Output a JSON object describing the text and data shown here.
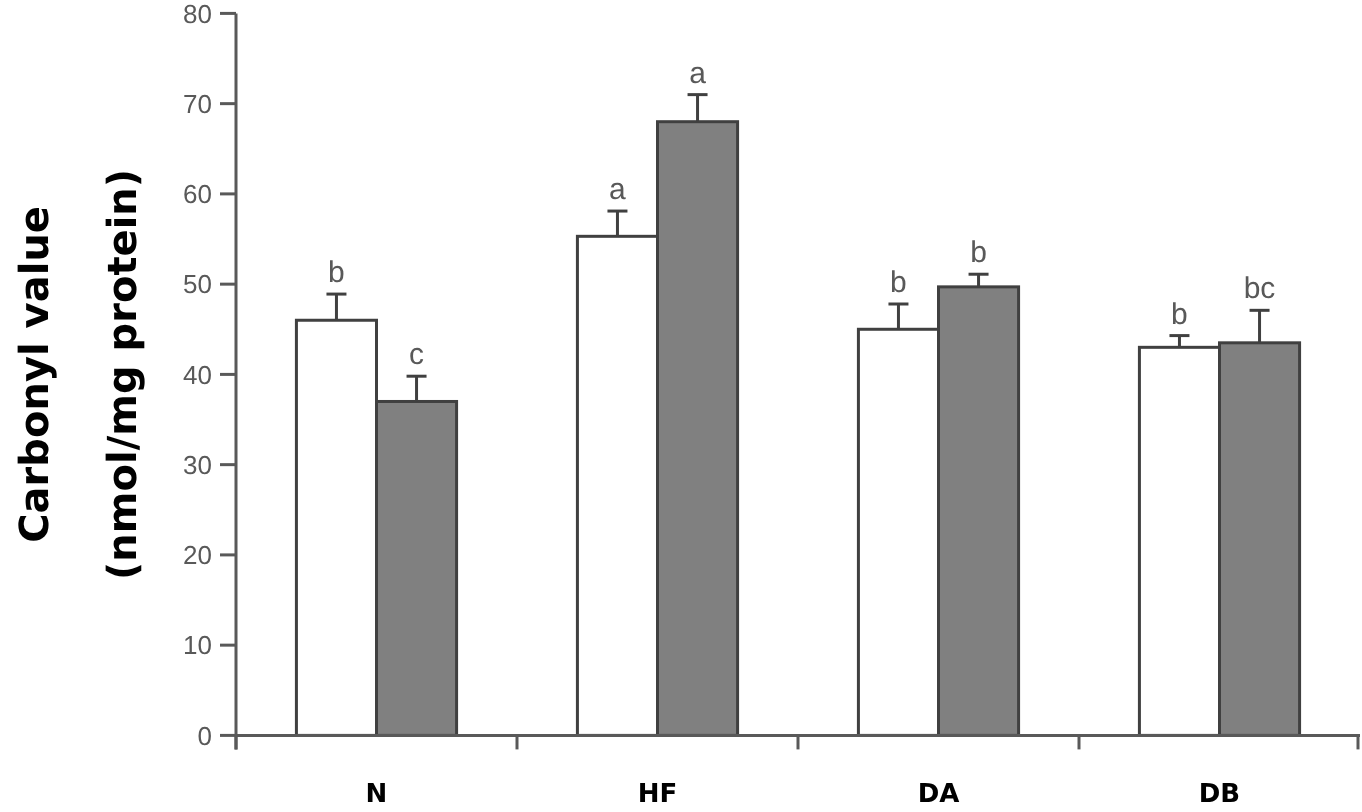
{
  "chart_data": {
    "type": "bar",
    "ylabel": "Carbonyl value\n(nmol/mg protein)",
    "categories": [
      "N",
      "HF",
      "DA",
      "DB"
    ],
    "series": [
      {
        "color": "#ffffff",
        "values": [
          46,
          55.3,
          45,
          43
        ],
        "errors": [
          [
            46,
            48.9
          ],
          [
            55.3,
            58.1
          ],
          [
            45,
            47.8
          ],
          [
            43,
            44.3
          ]
        ],
        "value_labels": [
          "b",
          "a",
          "b",
          "b"
        ]
      },
      {
        "color": "#808080",
        "values": [
          37,
          68,
          49.7,
          43.5
        ],
        "errors": [
          [
            37,
            39.8
          ],
          [
            68,
            71
          ],
          [
            49.7,
            51.1
          ],
          [
            43.5,
            47.1
          ]
        ],
        "value_labels": [
          "c",
          "a",
          "b",
          "bc"
        ]
      }
    ],
    "ylim": [
      0,
      80
    ],
    "yticks": [
      0,
      10,
      20,
      30,
      40,
      50,
      60,
      70,
      80
    ]
  }
}
